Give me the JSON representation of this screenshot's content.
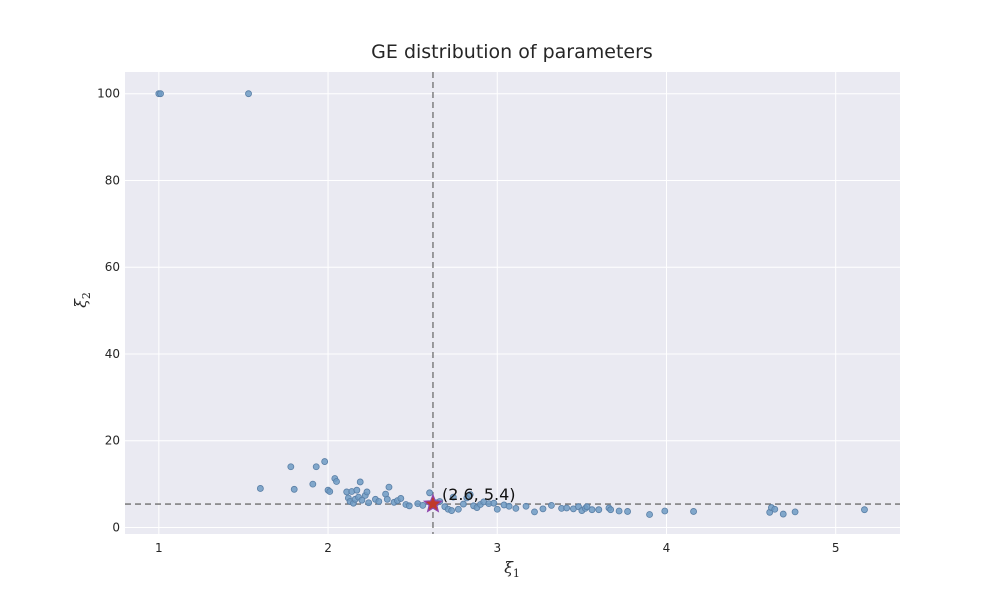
{
  "chart_data": {
    "type": "scatter",
    "title": "GE distribution of parameters",
    "xlabel": "ξ",
    "xlabel_sub": "1",
    "ylabel": "ξ",
    "ylabel_sub": "2",
    "xlim": [
      0.8,
      5.38
    ],
    "ylim": [
      -1.5,
      105
    ],
    "xticks": [
      1,
      2,
      3,
      4,
      5
    ],
    "yticks": [
      0,
      20,
      40,
      60,
      80,
      100
    ],
    "grid": true,
    "reference_lines": {
      "x": 2.62,
      "y": 5.4
    },
    "highlight": {
      "x": 2.62,
      "y": 5.4,
      "label": "(2.6, 5.4)",
      "marker": "star"
    },
    "colors": {
      "background": "#eaeaf2",
      "grid": "#ffffff",
      "points": "#6f9bc4",
      "point_edge": "#5a7fa6",
      "star_fill": "#c0392b",
      "star_edge": "#8e44ad",
      "reference_line": "#6e6e6e"
    },
    "series": [
      {
        "points": [
          [
            1.0,
            100
          ],
          [
            1.01,
            100
          ],
          [
            1.53,
            100
          ],
          [
            1.6,
            9.0
          ],
          [
            1.78,
            14.0
          ],
          [
            1.8,
            8.8
          ],
          [
            1.91,
            10.0
          ],
          [
            1.93,
            14.0
          ],
          [
            1.98,
            15.2
          ],
          [
            2.0,
            8.6
          ],
          [
            2.01,
            8.3
          ],
          [
            2.04,
            11.3
          ],
          [
            2.05,
            10.6
          ],
          [
            2.11,
            8.2
          ],
          [
            2.12,
            6.8
          ],
          [
            2.13,
            6.0
          ],
          [
            2.14,
            8.3
          ],
          [
            2.15,
            5.6
          ],
          [
            2.16,
            6.5
          ],
          [
            2.17,
            8.6
          ],
          [
            2.18,
            7.0
          ],
          [
            2.19,
            10.5
          ],
          [
            2.2,
            6.3
          ],
          [
            2.22,
            7.4
          ],
          [
            2.23,
            8.2
          ],
          [
            2.24,
            5.7
          ],
          [
            2.28,
            6.5
          ],
          [
            2.3,
            6.0
          ],
          [
            2.34,
            7.7
          ],
          [
            2.35,
            6.5
          ],
          [
            2.36,
            9.3
          ],
          [
            2.39,
            5.8
          ],
          [
            2.41,
            6.2
          ],
          [
            2.43,
            6.7
          ],
          [
            2.46,
            5.3
          ],
          [
            2.48,
            5.0
          ],
          [
            2.53,
            5.5
          ],
          [
            2.56,
            5.1
          ],
          [
            2.6,
            8.0
          ],
          [
            2.64,
            5.7
          ],
          [
            2.66,
            6.0
          ],
          [
            2.69,
            4.8
          ],
          [
            2.71,
            4.2
          ],
          [
            2.73,
            3.9
          ],
          [
            2.74,
            7.0
          ],
          [
            2.77,
            4.2
          ],
          [
            2.8,
            5.4
          ],
          [
            2.82,
            6.8
          ],
          [
            2.84,
            7.6
          ],
          [
            2.86,
            5.0
          ],
          [
            2.88,
            4.6
          ],
          [
            2.9,
            5.3
          ],
          [
            2.92,
            5.9
          ],
          [
            2.95,
            5.5
          ],
          [
            2.98,
            5.6
          ],
          [
            3.0,
            4.2
          ],
          [
            3.04,
            5.2
          ],
          [
            3.07,
            4.9
          ],
          [
            3.11,
            4.4
          ],
          [
            3.17,
            4.9
          ],
          [
            3.22,
            3.6
          ],
          [
            3.27,
            4.3
          ],
          [
            3.32,
            5.1
          ],
          [
            3.38,
            4.4
          ],
          [
            3.41,
            4.5
          ],
          [
            3.45,
            4.3
          ],
          [
            3.48,
            4.8
          ],
          [
            3.5,
            3.9
          ],
          [
            3.52,
            4.4
          ],
          [
            3.53,
            4.8
          ],
          [
            3.56,
            4.1
          ],
          [
            3.6,
            4.1
          ],
          [
            3.66,
            4.5
          ],
          [
            3.67,
            4.1
          ],
          [
            3.72,
            3.8
          ],
          [
            3.77,
            3.7
          ],
          [
            3.9,
            3.0
          ],
          [
            3.99,
            3.8
          ],
          [
            4.16,
            3.7
          ],
          [
            4.61,
            3.5
          ],
          [
            4.62,
            4.6
          ],
          [
            4.64,
            4.2
          ],
          [
            4.69,
            3.1
          ],
          [
            4.76,
            3.6
          ],
          [
            5.17,
            4.1
          ]
        ]
      }
    ]
  }
}
